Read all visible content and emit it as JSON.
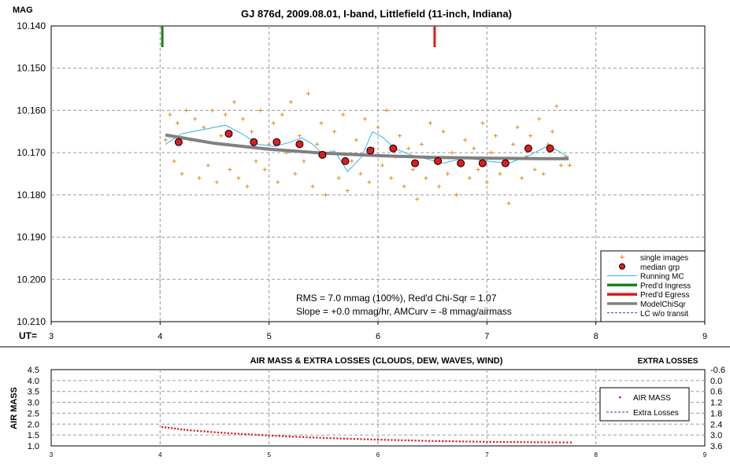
{
  "top_chart": {
    "title": "GJ 876d, 2009.08.01, I-band, Littlefield (11-inch, Indiana)",
    "ylabel": "MAG",
    "xlabel_prefix": "UT=",
    "y_ticks": [
      "10.140",
      "10.150",
      "10.160",
      "10.170",
      "10.180",
      "10.190",
      "10.200",
      "10.210"
    ],
    "x_ticks": [
      "3",
      "4",
      "5",
      "6",
      "7",
      "8",
      "9"
    ],
    "stats_line1": "RMS = 7.0 mmag (100%), Red'd Chi-Sqr = 1.07",
    "stats_line2": "Slope = +0.0 mmag/hr, AMCurv = -8 mmag/airmass",
    "legend": [
      {
        "label": "single images",
        "kind": "plus",
        "color": "#e08a1e"
      },
      {
        "label": "median grp",
        "kind": "dot",
        "color": "#e31a1c"
      },
      {
        "label": "Running MC",
        "kind": "thinline",
        "color": "#33b5e5"
      },
      {
        "label": "Pred'd Ingress",
        "kind": "thickline",
        "color": "#1a7f1a"
      },
      {
        "label": "Pred'd Egress",
        "kind": "thickline",
        "color": "#e31a1c"
      },
      {
        "label": "ModelChiSqr",
        "kind": "thickline",
        "color": "#808080"
      },
      {
        "label": "LC w/o transit",
        "kind": "dashline",
        "color": "#1f3fbf"
      }
    ],
    "colors": {
      "single": "#e08a1e",
      "median": "#e31a1c",
      "running": "#33b5e5",
      "model": "#808080",
      "ingress": "#1a7f1a",
      "egress": "#e31a1c"
    }
  },
  "bottom_chart": {
    "title": "AIR MASS & EXTRA LOSSES (CLOUDS, DEW, WAVES, WIND)",
    "right_title": "EXTRA LOSSES",
    "ylabel": "AIR MASS",
    "y_ticks": [
      "4.5",
      "4.0",
      "3.5",
      "3.0",
      "2.5",
      "2.0",
      "1.5",
      "1.0"
    ],
    "y2_ticks": [
      "-0.6",
      "0.0",
      "0.6",
      "1.2",
      "1.8",
      "2.4",
      "3.0",
      "3.6"
    ],
    "x_ticks": [
      "3",
      "4",
      "5",
      "6",
      "7",
      "8",
      "9"
    ],
    "legend": [
      {
        "label": "AIR MASS",
        "kind": "dot",
        "color": "#e31a1c"
      },
      {
        "label": "Extra Losses",
        "kind": "dashline",
        "color": "#1f3fbf"
      }
    ]
  },
  "chart_data": [
    {
      "type": "scatter",
      "title": "GJ 876d, 2009.08.01, I-band, Littlefield (11-inch, Indiana)",
      "xlabel": "UT=",
      "ylabel": "MAG",
      "xlim": [
        3,
        9
      ],
      "ylim": [
        10.14,
        10.21
      ],
      "y_inverted": true,
      "grid": true,
      "legend_position": "bottom-right",
      "ingress_ut": 4.02,
      "egress_ut": 6.52,
      "series": [
        {
          "name": "median grp",
          "x": [
            4.17,
            4.63,
            4.86,
            5.07,
            5.28,
            5.49,
            5.7,
            5.93,
            6.14,
            6.34,
            6.55,
            6.76,
            6.96,
            7.17,
            7.38,
            7.58
          ],
          "y": [
            10.1675,
            10.1655,
            10.1675,
            10.1675,
            10.168,
            10.1705,
            10.172,
            10.1695,
            10.169,
            10.1725,
            10.172,
            10.1725,
            10.1725,
            10.1725,
            10.169,
            10.169
          ]
        },
        {
          "name": "ModelChiSqr",
          "x": [
            4.05,
            4.5,
            5.0,
            5.5,
            6.0,
            6.5,
            7.0,
            7.5,
            7.75
          ],
          "y": [
            10.1658,
            10.1678,
            10.1692,
            10.1701,
            10.1707,
            10.1711,
            10.1713,
            10.1714,
            10.1714
          ]
        },
        {
          "name": "Running MC",
          "x": [
            4.05,
            4.2,
            4.4,
            4.6,
            4.75,
            4.9,
            5.05,
            5.2,
            5.3,
            5.4,
            5.5,
            5.6,
            5.72,
            5.85,
            5.95,
            6.05,
            6.15,
            6.3,
            6.45,
            6.6,
            6.8,
            7.0,
            7.2,
            7.4,
            7.55,
            7.65,
            7.75
          ],
          "y": [
            10.168,
            10.1655,
            10.1645,
            10.1635,
            10.1655,
            10.168,
            10.1685,
            10.1675,
            10.1665,
            10.168,
            10.1705,
            10.1695,
            10.1745,
            10.171,
            10.165,
            10.1665,
            10.169,
            10.1705,
            10.1715,
            10.1725,
            10.1712,
            10.172,
            10.1725,
            10.1705,
            10.1685,
            10.1695,
            10.171
          ]
        },
        {
          "name": "single images",
          "x": [
            4.05,
            4.09,
            4.13,
            4.16,
            4.2,
            4.24,
            4.28,
            4.32,
            4.36,
            4.4,
            4.44,
            4.48,
            4.52,
            4.56,
            4.6,
            4.64,
            4.68,
            4.72,
            4.76,
            4.8,
            4.84,
            4.88,
            4.92,
            4.96,
            5.0,
            5.04,
            5.08,
            5.12,
            5.16,
            5.2,
            5.24,
            5.28,
            5.32,
            5.36,
            5.4,
            5.44,
            5.48,
            5.52,
            5.56,
            5.6,
            5.64,
            5.68,
            5.72,
            5.76,
            5.8,
            5.84,
            5.88,
            5.92,
            5.96,
            6.0,
            6.04,
            6.08,
            6.12,
            6.16,
            6.2,
            6.24,
            6.28,
            6.32,
            6.36,
            6.4,
            6.44,
            6.48,
            6.52,
            6.56,
            6.6,
            6.64,
            6.68,
            6.72,
            6.76,
            6.8,
            6.84,
            6.88,
            6.92,
            6.96,
            7.0,
            7.04,
            7.08,
            7.12,
            7.16,
            7.2,
            7.24,
            7.28,
            7.32,
            7.36,
            7.4,
            7.44,
            7.48,
            7.52,
            7.56,
            7.6,
            7.64,
            7.68,
            7.72,
            7.76
          ],
          "y": [
            10.167,
            10.161,
            10.172,
            10.163,
            10.175,
            10.16,
            10.167,
            10.162,
            10.176,
            10.164,
            10.173,
            10.16,
            10.177,
            10.166,
            10.161,
            10.174,
            10.158,
            10.176,
            10.162,
            10.178,
            10.165,
            10.172,
            10.16,
            10.174,
            10.168,
            10.163,
            10.177,
            10.161,
            10.17,
            10.158,
            10.175,
            10.166,
            10.172,
            10.156,
            10.178,
            10.168,
            10.163,
            10.18,
            10.17,
            10.165,
            10.176,
            10.161,
            10.179,
            10.172,
            10.167,
            10.175,
            10.162,
            10.177,
            10.169,
            10.164,
            10.173,
            10.16,
            10.176,
            10.171,
            10.166,
            10.178,
            10.169,
            10.174,
            10.181,
            10.168,
            10.176,
            10.163,
            10.172,
            10.178,
            10.165,
            10.175,
            10.17,
            10.18,
            10.173,
            10.167,
            10.176,
            10.169,
            10.174,
            10.163,
            10.177,
            10.17,
            10.166,
            10.175,
            10.172,
            10.182,
            10.168,
            10.164,
            10.176,
            10.171,
            10.166,
            10.174,
            10.162,
            10.175,
            10.168,
            10.165,
            10.159,
            10.173,
            10.171,
            10.173
          ]
        }
      ]
    },
    {
      "type": "scatter",
      "title": "AIR MASS & EXTRA LOSSES (CLOUDS, DEW, WAVES, WIND)",
      "ylabel": "AIR MASS",
      "xlim": [
        3,
        9
      ],
      "ylim": [
        1.0,
        4.5
      ],
      "y2lim": [
        -0.6,
        3.6
      ],
      "grid": true,
      "legend_position": "right",
      "series": [
        {
          "name": "AIR MASS",
          "x": [
            4.02,
            4.25,
            4.5,
            4.75,
            5.0,
            5.25,
            5.5,
            5.75,
            6.0,
            6.25,
            6.5,
            6.75,
            7.0,
            7.25,
            7.5,
            7.77
          ],
          "y": [
            1.87,
            1.73,
            1.63,
            1.55,
            1.48,
            1.42,
            1.37,
            1.33,
            1.29,
            1.26,
            1.23,
            1.21,
            1.19,
            1.18,
            1.17,
            1.16
          ]
        }
      ]
    }
  ]
}
